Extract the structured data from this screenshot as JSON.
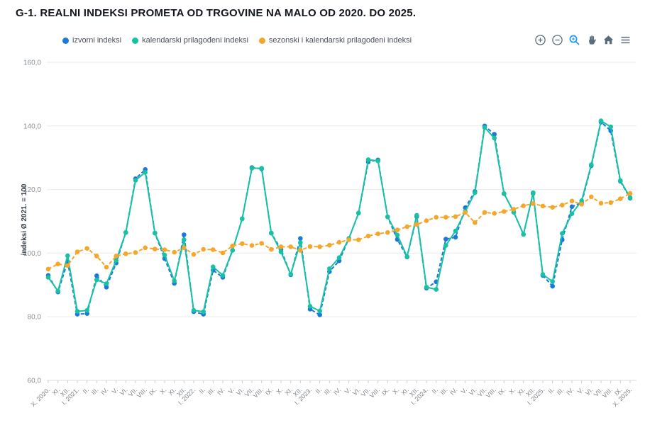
{
  "header": {
    "title": "G-1. REALNI INDEKSI PROMETA OD TRGOVINE NA MALO OD 2020. DO 2025."
  },
  "legend": [
    {
      "label": "izvorni indeksi",
      "color": "#1C78D9"
    },
    {
      "label": "kalendarski prilagođeni indeksi",
      "color": "#17C2A3"
    },
    {
      "label": "sezonski i kalendarski prilagođeni indeksi",
      "color": "#F5A62B"
    }
  ],
  "toolbar": {
    "items": [
      {
        "name": "zoom-in",
        "color": "#5A6B7B"
      },
      {
        "name": "zoom-out",
        "color": "#5A6B7B"
      },
      {
        "name": "selection-zoom",
        "color": "#2196F3"
      },
      {
        "name": "pan",
        "color": "#5A6B7B"
      },
      {
        "name": "reset-home",
        "color": "#5A6B7B"
      },
      {
        "name": "menu",
        "color": "#5A6B7B"
      }
    ]
  },
  "chart_data": {
    "type": "line",
    "title": "G-1. REALNI INDEKSI PROMETA OD TRGOVINE NA MALO OD 2020. DO 2025.",
    "xlabel": "",
    "ylabel": "indeksi Ø 2021. = 100",
    "ylim": [
      60,
      160
    ],
    "ytick_values": [
      160,
      140,
      120,
      100,
      80,
      60
    ],
    "ytick_labels": [
      "160,0",
      "140,0",
      "120,0",
      "100,0",
      "80,0",
      "60,0"
    ],
    "grid": "horizontal",
    "legend_position": "top-left",
    "categories": [
      "X. 2020.",
      "XI.",
      "XII.",
      "I. 2021.",
      "II.",
      "III.",
      "IV.",
      "V.",
      "VI.",
      "VII.",
      "VIII.",
      "IX.",
      "X.",
      "XI.",
      "XII.",
      "I. 2022.",
      "II.",
      "III.",
      "IV.",
      "V.",
      "VI.",
      "VII.",
      "VIII.",
      "IX.",
      "X.",
      "XI.",
      "XII.",
      "I. 2023.",
      "II.",
      "III.",
      "IV.",
      "V.",
      "VI.",
      "VII.",
      "VIII.",
      "IX.",
      "X.",
      "XI.",
      "XII.",
      "I. 2024.",
      "II.",
      "III.",
      "IV.",
      "V.",
      "VI.",
      "VII.",
      "VIII.",
      "IX.",
      "X.",
      "XI.",
      "XII.",
      "I. 2025.",
      "II.",
      "III.",
      "IV.",
      "V.",
      "VI.",
      "VII.",
      "VIII.",
      "IX.",
      "X. 2025."
    ],
    "series": [
      {
        "id": "izvorni",
        "name": "izvorni indeksi",
        "color": "#1C78D9",
        "dash": "5 3",
        "values": [
          93.0,
          87.8,
          97.3,
          80.8,
          81.0,
          92.9,
          89.3,
          96.9,
          106.5,
          123.4,
          126.3,
          106.3,
          98.3,
          90.5,
          105.8,
          81.6,
          80.8,
          94.6,
          92.4,
          100.9,
          110.8,
          126.9,
          126.5,
          106.3,
          101.2,
          93.2,
          104.6,
          82.4,
          80.6,
          94.2,
          97.6,
          104.6,
          112.6,
          128.7,
          129.3,
          111.4,
          104.3,
          98.8,
          111.5,
          89.0,
          91.0,
          104.4,
          105.0,
          114.3,
          119.4,
          140.0,
          137.4,
          118.7,
          112.9,
          105.9,
          118.8,
          93.0,
          89.6,
          104.2,
          114.6,
          115.9,
          127.5,
          141.2,
          138.5,
          122.6,
          117.3
        ]
      },
      {
        "id": "kalendarski",
        "name": "kalendarski prilagođeni indeksi",
        "color": "#17C2A3",
        "dash": null,
        "values": [
          92.4,
          88.1,
          99.2,
          81.7,
          82.0,
          91.6,
          90.4,
          97.7,
          106.5,
          122.9,
          125.4,
          106.3,
          99.4,
          91.3,
          104.2,
          82.0,
          81.6,
          95.7,
          93.0,
          100.9,
          110.8,
          126.7,
          126.7,
          106.3,
          100.4,
          93.4,
          103.3,
          83.3,
          81.8,
          95.1,
          98.6,
          104.6,
          112.6,
          129.4,
          129.0,
          111.4,
          105.7,
          98.9,
          111.9,
          89.3,
          88.6,
          102.4,
          107.0,
          113.1,
          119.0,
          139.5,
          136.2,
          118.7,
          112.9,
          105.9,
          119.0,
          93.3,
          91.1,
          106.2,
          112.4,
          116.5,
          127.8,
          141.6,
          139.7,
          122.8,
          117.5
        ]
      },
      {
        "id": "sezonski",
        "name": "sezonski i kalendarski prilagođeni indeksi",
        "color": "#F5A62B",
        "dash": "5 3",
        "values": [
          95.0,
          96.6,
          96.1,
          100.4,
          101.5,
          99.1,
          95.6,
          99.1,
          99.8,
          100.2,
          101.7,
          101.3,
          101.1,
          100.3,
          101.7,
          99.6,
          101.2,
          101.1,
          100.1,
          102.3,
          103.0,
          102.4,
          103.1,
          101.2,
          102.0,
          102.0,
          100.9,
          102.1,
          102.0,
          102.5,
          103.4,
          104.2,
          104.2,
          105.4,
          106.1,
          106.5,
          107.3,
          108.3,
          109.0,
          110.2,
          111.3,
          111.3,
          111.5,
          112.8,
          109.6,
          112.8,
          112.5,
          113.1,
          113.8,
          114.9,
          115.6,
          114.8,
          114.4,
          115.1,
          116.4,
          115.4,
          117.7,
          115.7,
          115.9,
          117.1,
          118.8
        ]
      }
    ]
  }
}
